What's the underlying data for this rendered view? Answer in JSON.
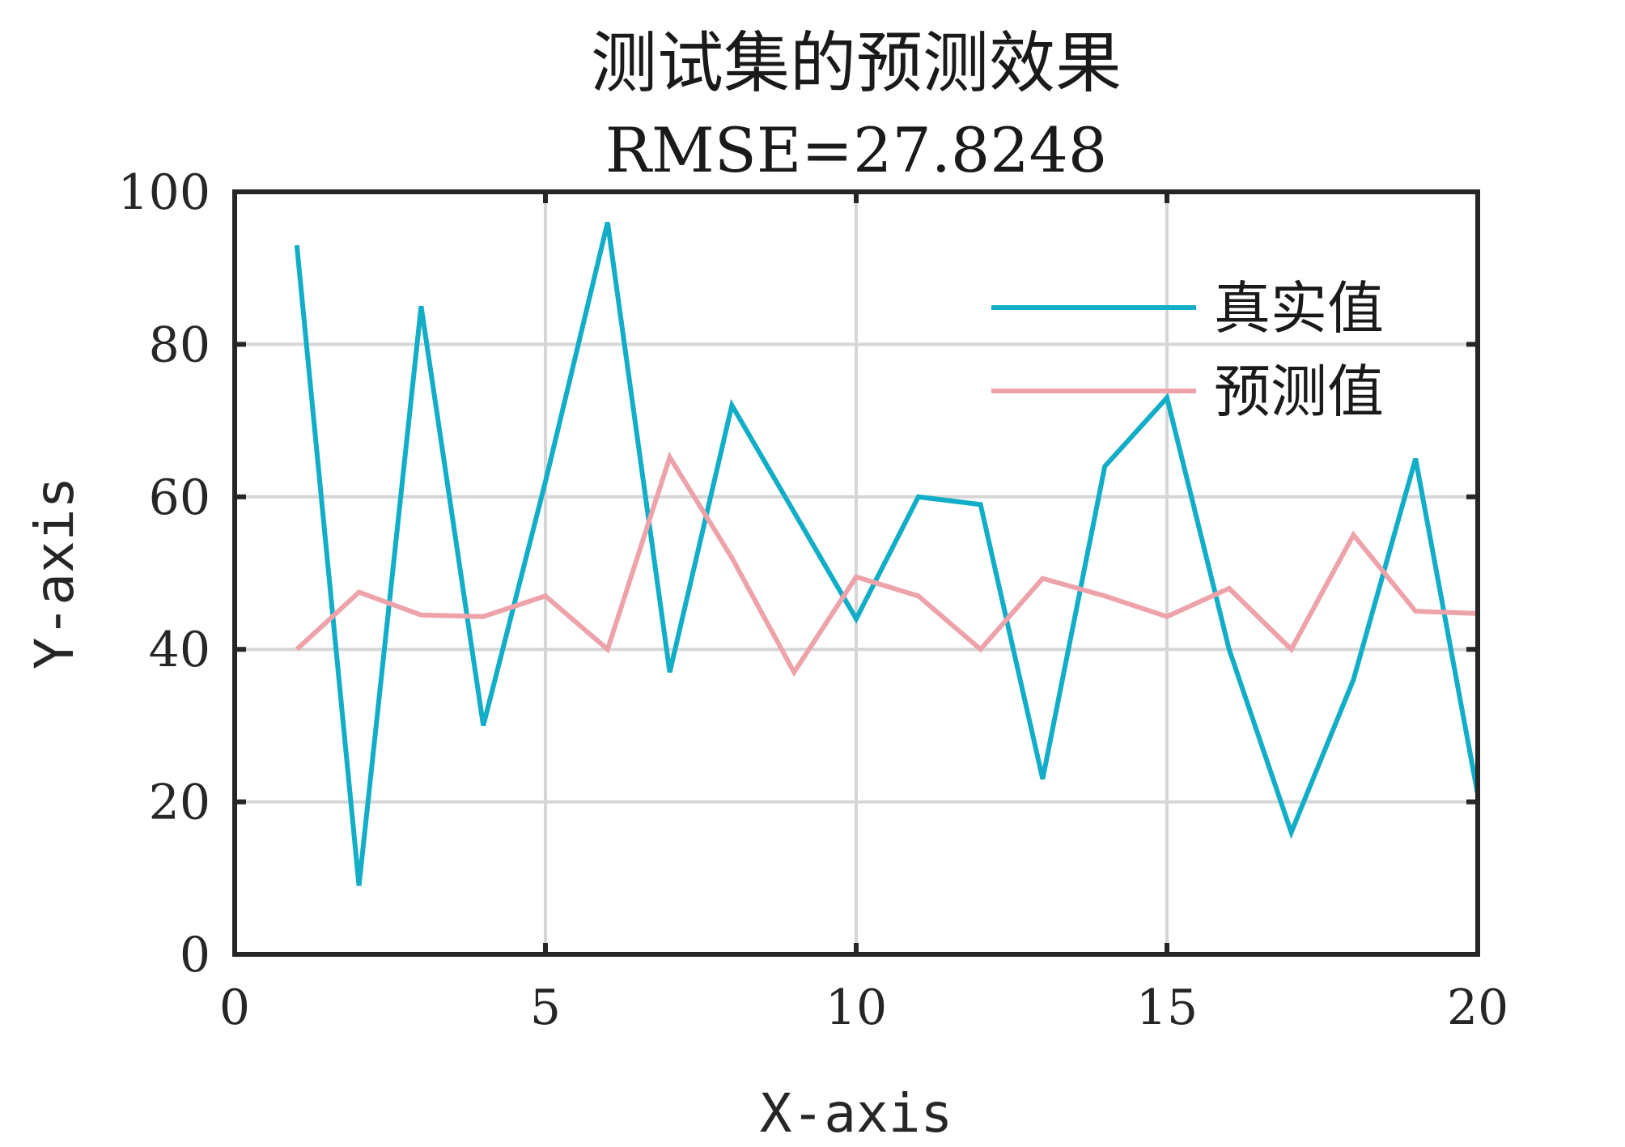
{
  "chart_data": {
    "type": "line",
    "title": "测试集的预测效果",
    "subtitle": "RMSE=27.8248",
    "xlabel": "X-axis",
    "ylabel": "Y-axis",
    "xlim": [
      0,
      20
    ],
    "ylim": [
      0,
      100
    ],
    "xticks": [
      0,
      5,
      10,
      15,
      20
    ],
    "yticks": [
      0,
      20,
      40,
      60,
      80,
      100
    ],
    "grid": true,
    "legend_position": "top-right",
    "x": [
      1,
      2,
      3,
      4,
      5,
      6,
      7,
      8,
      9,
      10,
      11,
      12,
      13,
      14,
      15,
      16,
      17,
      18,
      19,
      20
    ],
    "series": [
      {
        "name": "真实值",
        "color": "#12adc6",
        "values": [
          93,
          9,
          85,
          30,
          62,
          96,
          37,
          72,
          58,
          44,
          60,
          59,
          23,
          64,
          73,
          40,
          16,
          36,
          65,
          21
        ]
      },
      {
        "name": "预测值",
        "color": "#eea2aa",
        "values": [
          40,
          47.5,
          44.5,
          44.3,
          47,
          40,
          65.2,
          52,
          37,
          49.5,
          47,
          40,
          49.3,
          47,
          44.3,
          48,
          40,
          55,
          45,
          44.7
        ]
      }
    ]
  }
}
